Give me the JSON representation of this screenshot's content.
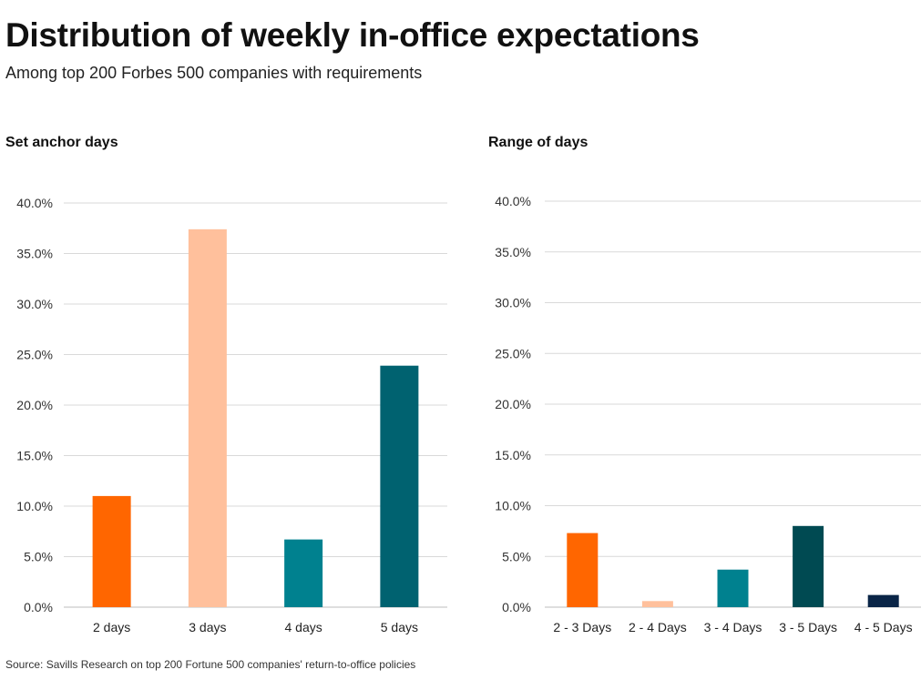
{
  "title": "Distribution of weekly in-office expectations",
  "subtitle": "Among top 200 Forbes 500 companies with requirements",
  "source": "Source: Savills Research on top 200 Fortune 500 companies' return-to-office policies",
  "chart_data": [
    {
      "type": "bar",
      "title": "Set anchor days",
      "xlabel": "",
      "ylabel": "",
      "ylim": [
        0,
        40
      ],
      "yticks": [
        "0.0%",
        "5.0%",
        "10.0%",
        "15.0%",
        "20.0%",
        "25.0%",
        "30.0%",
        "35.0%",
        "40.0%"
      ],
      "grid": true,
      "categories": [
        "2 days",
        "3 days",
        "4 days",
        "5 days"
      ],
      "values": [
        11.0,
        37.4,
        6.7,
        23.9
      ],
      "colors": [
        "#ff6600",
        "#ffc09c",
        "#00818f",
        "#006270"
      ]
    },
    {
      "type": "bar",
      "title": "Range of days",
      "xlabel": "",
      "ylabel": "",
      "ylim": [
        0,
        40
      ],
      "yticks": [
        "0.0%",
        "5.0%",
        "10.0%",
        "15.0%",
        "20.0%",
        "25.0%",
        "30.0%",
        "35.0%",
        "40.0%"
      ],
      "grid": true,
      "categories": [
        "2 - 3 Days",
        "2 - 4 Days",
        "3 - 4 Days",
        "3 - 5 Days",
        "4 - 5 Days"
      ],
      "values": [
        7.3,
        0.6,
        3.7,
        8.0,
        1.2
      ],
      "colors": [
        "#ff6600",
        "#ffc09c",
        "#00818f",
        "#004a52",
        "#0a2547"
      ]
    }
  ]
}
